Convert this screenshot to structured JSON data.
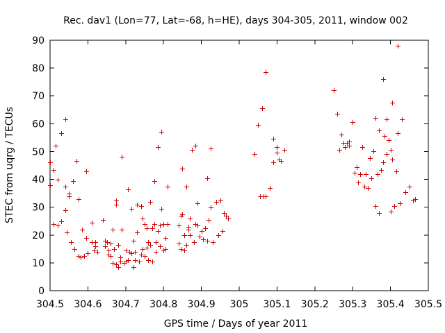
{
  "chart_data": {
    "type": "scatter",
    "title": "Rec. dav1 (Lon=77, Lat=-68, h=HE), days 304-305, 2011, window 002",
    "xlabel": "GPS time / Days of year 2011",
    "ylabel": "STEC from uqrg / TECUs",
    "xlim": [
      304.5,
      305.5
    ],
    "ylim": [
      0,
      90
    ],
    "x_ticks": [
      "304.5",
      "304.6",
      "304.7",
      "304.8",
      "304.9",
      "305",
      "305.1",
      "305.2",
      "305.3",
      "305.4",
      "305.5"
    ],
    "y_ticks": [
      "0",
      "10",
      "20",
      "30",
      "40",
      "50",
      "60",
      "70",
      "80",
      "90"
    ],
    "grid": false,
    "marker": "+",
    "color": "#cc0000",
    "points": [
      [
        304.5,
        46
      ],
      [
        304.5,
        38
      ],
      [
        304.51,
        24
      ],
      [
        304.51,
        43.5
      ],
      [
        304.515,
        52
      ],
      [
        304.52,
        23.5
      ],
      [
        304.52,
        40
      ],
      [
        304.53,
        25
      ],
      [
        304.53,
        56.5
      ],
      [
        304.54,
        61.5
      ],
      [
        304.54,
        37.5
      ],
      [
        304.54,
        29
      ],
      [
        304.545,
        21
      ],
      [
        304.55,
        35
      ],
      [
        304.55,
        34
      ],
      [
        304.555,
        17.5
      ],
      [
        304.56,
        39.5
      ],
      [
        304.565,
        15
      ],
      [
        304.57,
        46.5
      ],
      [
        304.575,
        33
      ],
      [
        304.575,
        12.5
      ],
      [
        304.58,
        12
      ],
      [
        304.585,
        22
      ],
      [
        304.59,
        12.5
      ],
      [
        304.595,
        43
      ],
      [
        304.595,
        19
      ],
      [
        304.6,
        13.5
      ],
      [
        304.61,
        17.5
      ],
      [
        304.61,
        24.5
      ],
      [
        304.615,
        14.5
      ],
      [
        304.62,
        17.5
      ],
      [
        304.62,
        16
      ],
      [
        304.625,
        14
      ],
      [
        304.64,
        25.5
      ],
      [
        304.645,
        18
      ],
      [
        304.645,
        16
      ],
      [
        304.65,
        17.5
      ],
      [
        304.655,
        14.5
      ],
      [
        304.655,
        13
      ],
      [
        304.66,
        17
      ],
      [
        304.66,
        12.5
      ],
      [
        304.665,
        22
      ],
      [
        304.665,
        10
      ],
      [
        304.67,
        15
      ],
      [
        304.675,
        9.5
      ],
      [
        304.675,
        31
      ],
      [
        304.675,
        32.5
      ],
      [
        304.68,
        8.5
      ],
      [
        304.68,
        16.5
      ],
      [
        304.685,
        12
      ],
      [
        304.685,
        10.5
      ],
      [
        304.69,
        48
      ],
      [
        304.69,
        22
      ],
      [
        304.695,
        10
      ],
      [
        304.7,
        14.5
      ],
      [
        304.7,
        10.5
      ],
      [
        304.705,
        36.5
      ],
      [
        304.705,
        11
      ],
      [
        304.71,
        14
      ],
      [
        304.715,
        13.5
      ],
      [
        304.715,
        29.5
      ],
      [
        304.72,
        8.5
      ],
      [
        304.72,
        18
      ],
      [
        304.725,
        14
      ],
      [
        304.725,
        11
      ],
      [
        304.73,
        31
      ],
      [
        304.73,
        21
      ],
      [
        304.735,
        10.5
      ],
      [
        304.74,
        30.5
      ],
      [
        304.74,
        13
      ],
      [
        304.745,
        15
      ],
      [
        304.745,
        26
      ],
      [
        304.75,
        24
      ],
      [
        304.75,
        12.5
      ],
      [
        304.755,
        15.5
      ],
      [
        304.755,
        22.5
      ],
      [
        304.76,
        17.5
      ],
      [
        304.76,
        11
      ],
      [
        304.765,
        32
      ],
      [
        304.765,
        16.5
      ],
      [
        304.77,
        22.5
      ],
      [
        304.77,
        10.5
      ],
      [
        304.775,
        39.5
      ],
      [
        304.775,
        24
      ],
      [
        304.78,
        14
      ],
      [
        304.78,
        17.5
      ],
      [
        304.785,
        21.5
      ],
      [
        304.785,
        51.5
      ],
      [
        304.79,
        23.5
      ],
      [
        304.79,
        16
      ],
      [
        304.795,
        57
      ],
      [
        304.795,
        29.5
      ],
      [
        304.8,
        14.5
      ],
      [
        304.8,
        24
      ],
      [
        304.805,
        19
      ],
      [
        304.805,
        15
      ],
      [
        304.81,
        37.5
      ],
      [
        304.81,
        24
      ],
      [
        304.84,
        17
      ],
      [
        304.84,
        23.5
      ],
      [
        304.845,
        15
      ],
      [
        304.845,
        27
      ],
      [
        304.85,
        44
      ],
      [
        304.85,
        27.5
      ],
      [
        304.855,
        20
      ],
      [
        304.855,
        14.5
      ],
      [
        304.86,
        16.5
      ],
      [
        304.86,
        37.5
      ],
      [
        304.865,
        22
      ],
      [
        304.865,
        23
      ],
      [
        304.87,
        20
      ],
      [
        304.87,
        26
      ],
      [
        304.875,
        50.5
      ],
      [
        304.88,
        17.5
      ],
      [
        304.885,
        52
      ],
      [
        304.885,
        24
      ],
      [
        304.89,
        31.5
      ],
      [
        304.89,
        23.5
      ],
      [
        304.895,
        19.5
      ],
      [
        304.9,
        21.5
      ],
      [
        304.905,
        18.5
      ],
      [
        304.91,
        22.5
      ],
      [
        304.915,
        40.5
      ],
      [
        304.915,
        18
      ],
      [
        304.92,
        25.5
      ],
      [
        304.925,
        51
      ],
      [
        304.925,
        30
      ],
      [
        304.93,
        17.5
      ],
      [
        304.94,
        32
      ],
      [
        304.945,
        20
      ],
      [
        304.95,
        32.5
      ],
      [
        304.955,
        21.5
      ],
      [
        304.96,
        28
      ],
      [
        304.965,
        27
      ],
      [
        304.97,
        26
      ],
      [
        305.04,
        49
      ],
      [
        305.05,
        59.5
      ],
      [
        305.055,
        34
      ],
      [
        305.06,
        65.5
      ],
      [
        305.065,
        34
      ],
      [
        305.07,
        78.5
      ],
      [
        305.07,
        34
      ],
      [
        305.08,
        37
      ],
      [
        305.09,
        54.5
      ],
      [
        305.09,
        46
      ],
      [
        305.1,
        51.5
      ],
      [
        305.1,
        49.5
      ],
      [
        305.105,
        47
      ],
      [
        305.11,
        46.5
      ],
      [
        305.12,
        50.5
      ],
      [
        305.25,
        72
      ],
      [
        305.26,
        63.5
      ],
      [
        305.265,
        50.5
      ],
      [
        305.27,
        56
      ],
      [
        305.275,
        53
      ],
      [
        305.28,
        51.5
      ],
      [
        305.285,
        53
      ],
      [
        305.29,
        53.5
      ],
      [
        305.29,
        52
      ],
      [
        305.3,
        60.5
      ],
      [
        305.305,
        42.5
      ],
      [
        305.31,
        44.5
      ],
      [
        305.315,
        39
      ],
      [
        305.32,
        42
      ],
      [
        305.325,
        51.5
      ],
      [
        305.33,
        37.5
      ],
      [
        305.335,
        42
      ],
      [
        305.34,
        37
      ],
      [
        305.345,
        47.5
      ],
      [
        305.35,
        40.5
      ],
      [
        305.355,
        50
      ],
      [
        305.36,
        62
      ],
      [
        305.36,
        30.5
      ],
      [
        305.365,
        42
      ],
      [
        305.37,
        28
      ],
      [
        305.37,
        57.5
      ],
      [
        305.375,
        43.5
      ],
      [
        305.38,
        76
      ],
      [
        305.38,
        46
      ],
      [
        305.385,
        55.5
      ],
      [
        305.39,
        61.5
      ],
      [
        305.39,
        49
      ],
      [
        305.395,
        54
      ],
      [
        305.4,
        28.5
      ],
      [
        305.4,
        50.5
      ],
      [
        305.405,
        67.5
      ],
      [
        305.405,
        47
      ],
      [
        305.41,
        30.5
      ],
      [
        305.415,
        43
      ],
      [
        305.42,
        88
      ],
      [
        305.42,
        56.5
      ],
      [
        305.425,
        31.5
      ],
      [
        305.43,
        61.5
      ],
      [
        305.44,
        35.5
      ],
      [
        305.45,
        37.5
      ],
      [
        305.46,
        32.5
      ],
      [
        305.465,
        33
      ]
    ]
  }
}
